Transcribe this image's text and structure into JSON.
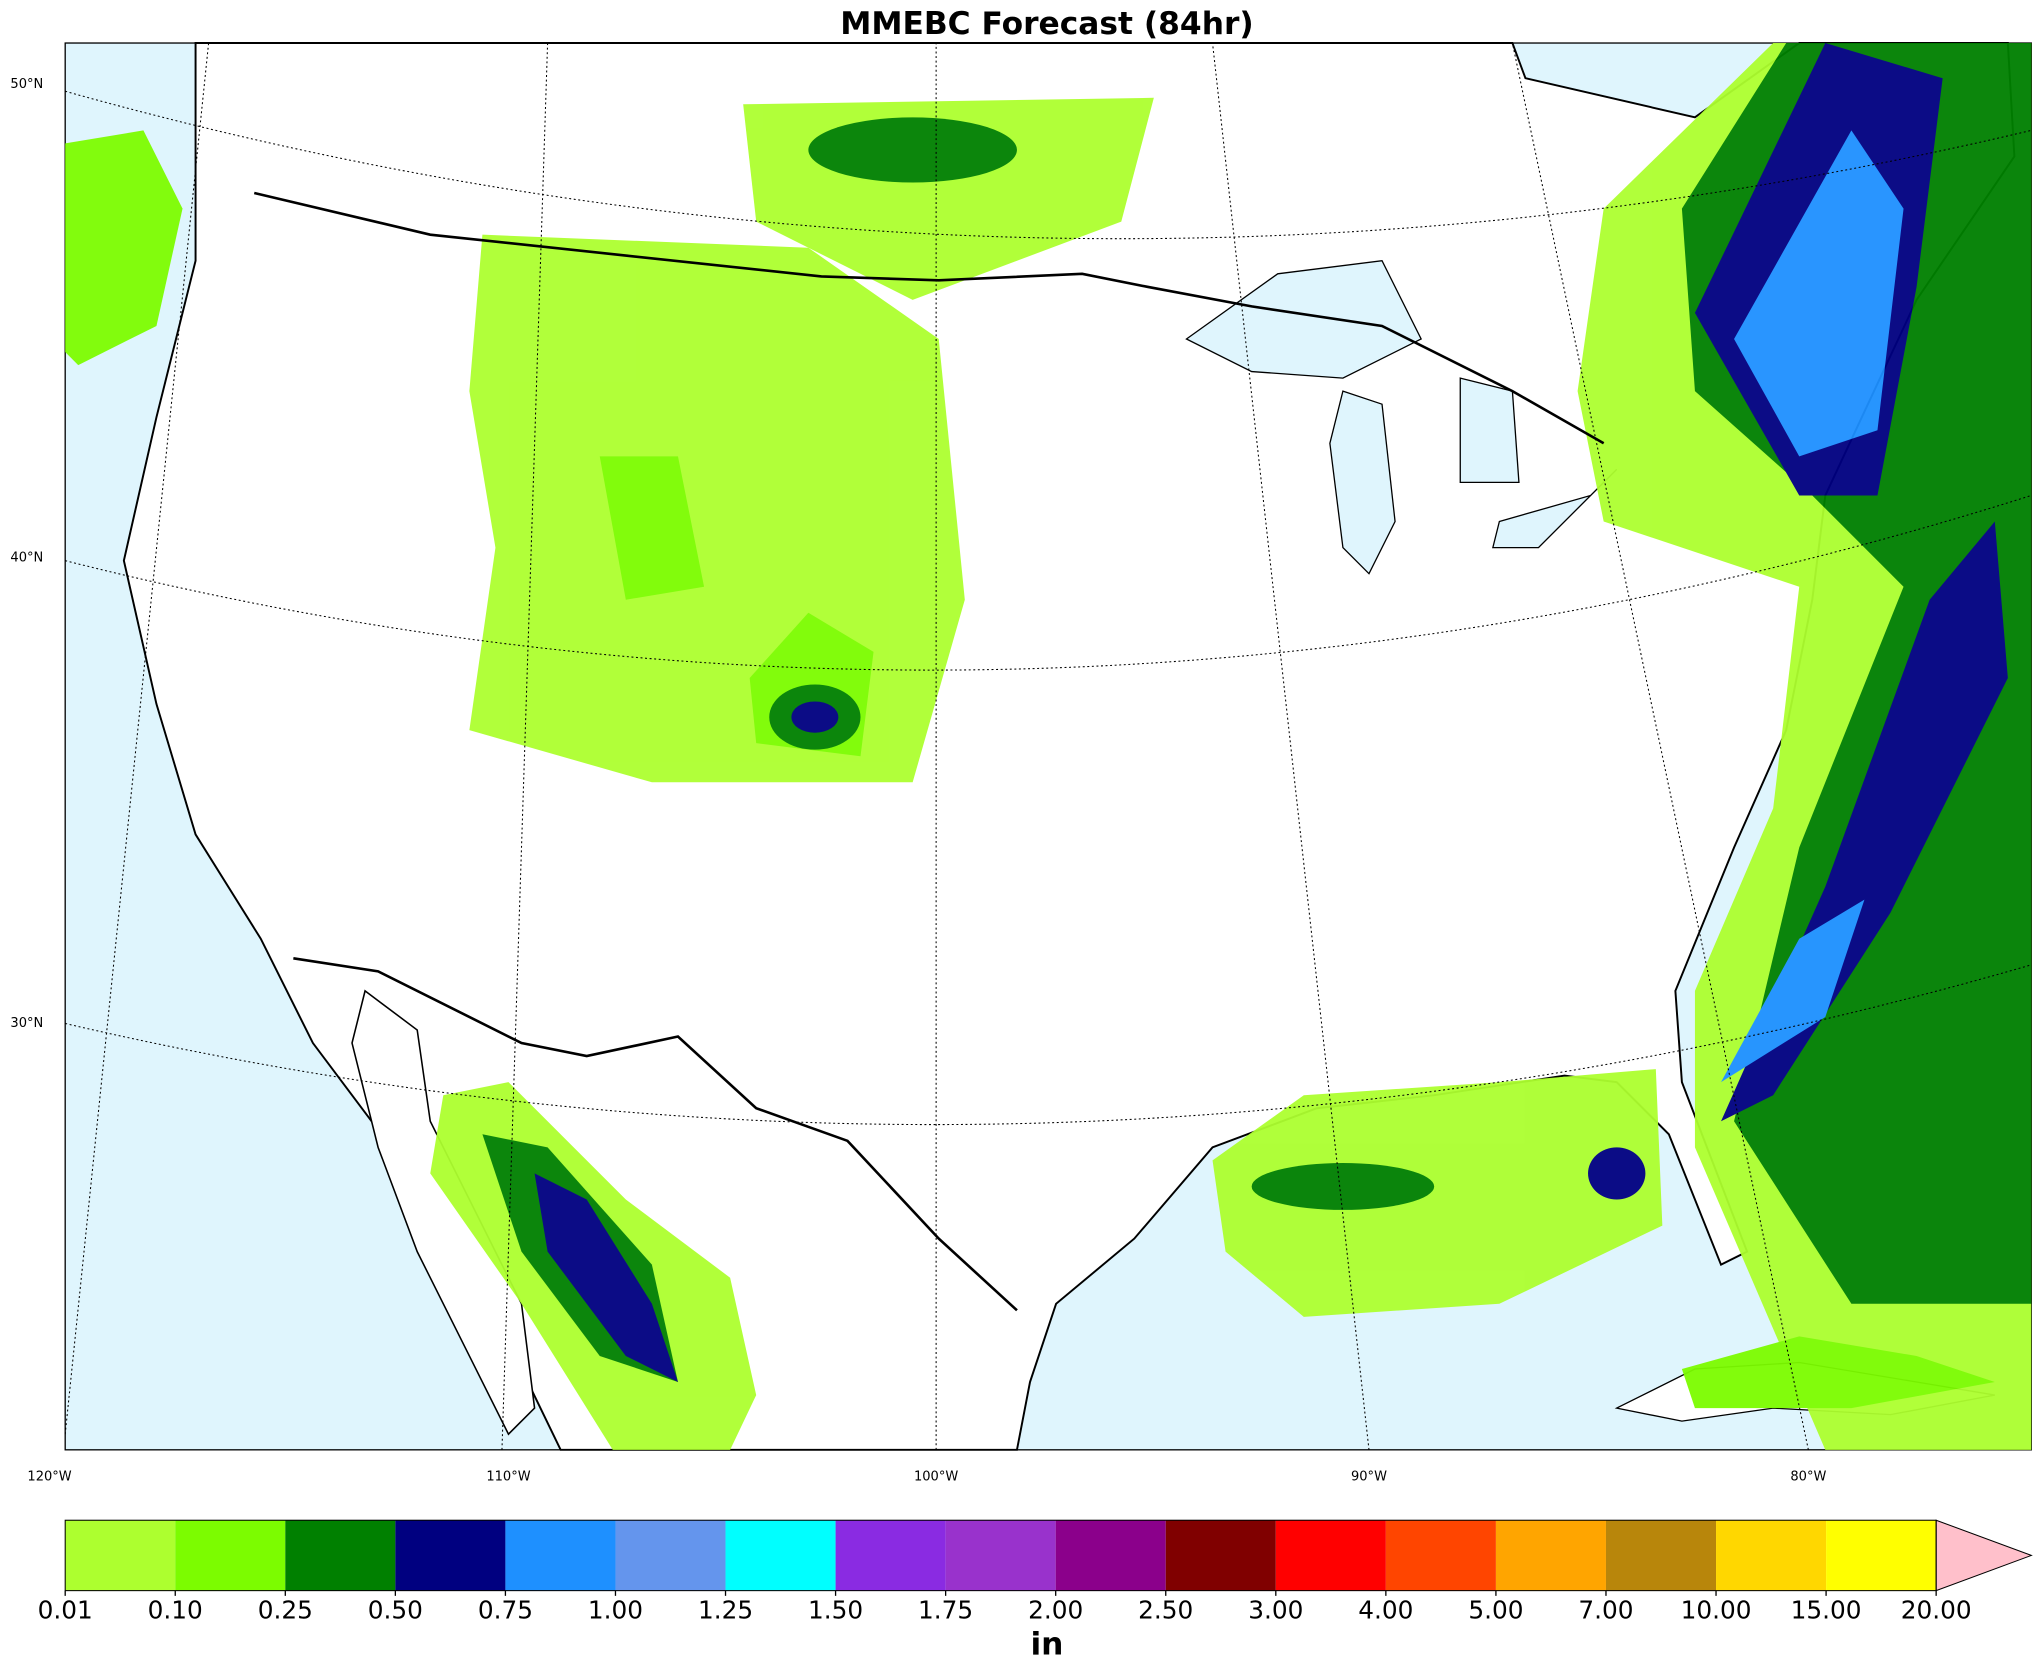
{
  "title": "MMEBC Forecast (84hr)",
  "lat_labels": [
    "50°N",
    "40°N",
    "30°N"
  ],
  "lon_labels": [
    "120°W",
    "110°W",
    "100°W",
    "90°W",
    "80°W"
  ],
  "colorbar": {
    "ticks": [
      {
        "value": 0.01,
        "label": "0.01"
      },
      {
        "value": 0.1,
        "label": "0.10"
      },
      {
        "value": 0.25,
        "label": "0.25"
      },
      {
        "value": 0.5,
        "label": "0.50"
      },
      {
        "value": 0.75,
        "label": "0.75"
      },
      {
        "value": 1,
        "label": "1.00"
      },
      {
        "value": 1.25,
        "label": "1.25"
      },
      {
        "value": 1.5,
        "label": "1.50"
      },
      {
        "value": 1.75,
        "label": "1.75"
      },
      {
        "value": 2,
        "label": "2.00"
      },
      {
        "value": 2.5,
        "label": "2.50"
      },
      {
        "value": 3,
        "label": "3.00"
      },
      {
        "value": 4,
        "label": "4.00"
      },
      {
        "value": 5,
        "label": "5.00"
      },
      {
        "value": 7,
        "label": "7.00"
      },
      {
        "value": 10,
        "label": "10.00"
      },
      {
        "value": 15,
        "label": "15.00"
      },
      {
        "value": 20,
        "label": "20.00"
      }
    ],
    "colors": [
      "#adff2f",
      "#7cfc00",
      "#008000",
      "#000080",
      "#1e90ff",
      "#6495ed",
      "#00ffff",
      "#8a2be2",
      "#9932cc",
      "#8b008b",
      "#800000",
      "#ff0000",
      "#ff4500",
      "#ffa500",
      "#b8860b",
      "#ffd700",
      "#ffff00"
    ],
    "extend_color": "#ffc0cb",
    "unit": "in"
  }
}
